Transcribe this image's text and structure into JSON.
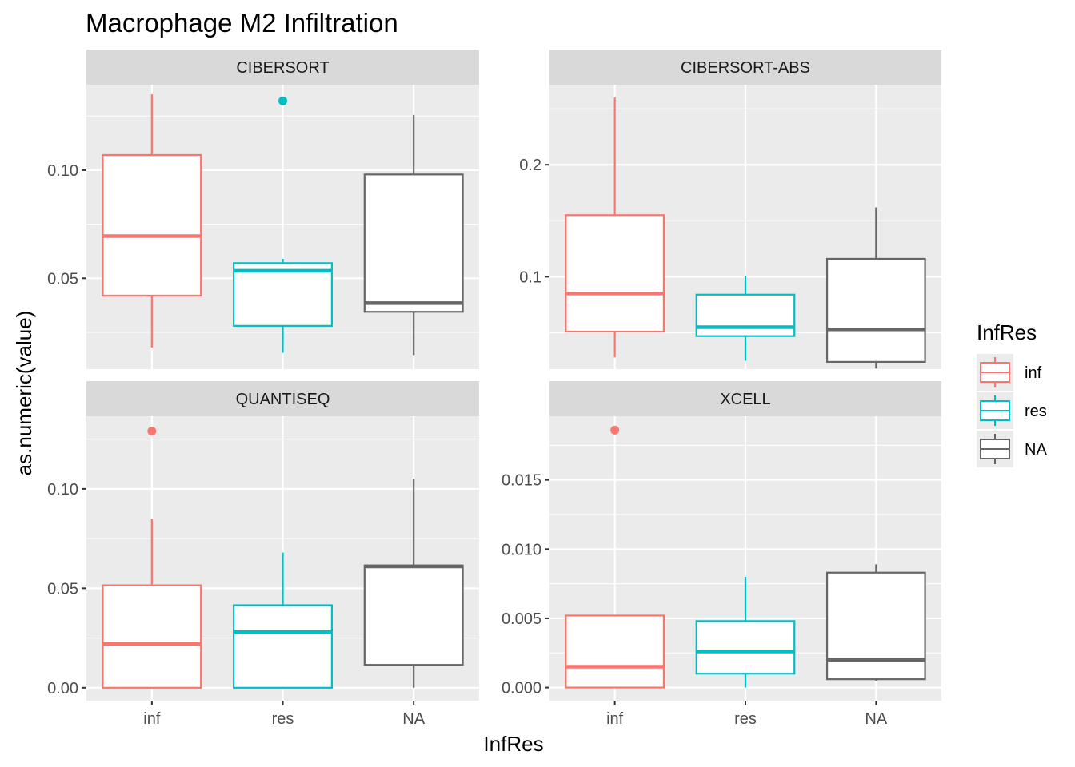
{
  "chart_data": {
    "type": "boxplot",
    "title": "Macrophage M2 Infiltration",
    "xlabel": "InfRes",
    "ylabel": "as.numeric(value)",
    "categories": [
      "inf",
      "res",
      "NA"
    ],
    "colors": {
      "inf": "#F8766D",
      "res": "#00BFC4",
      "NA": "#666666"
    },
    "legend": {
      "title": "InfRes",
      "entries": [
        "inf",
        "res",
        "NA"
      ],
      "position": "right"
    },
    "panel_background": "#EBEBEB",
    "strip_background": "#D9D9D9",
    "grid": true,
    "panels": [
      {
        "name": "CIBERSORT",
        "ylim": [
          0.008,
          0.1395
        ],
        "yticks": [
          0.05,
          0.1
        ],
        "ytick_labels": [
          "0.05",
          "0.10"
        ],
        "boxes": [
          {
            "category": "inf",
            "min": 0.018,
            "q1": 0.042,
            "median": 0.0695,
            "q3": 0.107,
            "max": 0.135,
            "outliers": []
          },
          {
            "category": "res",
            "min": 0.0155,
            "q1": 0.028,
            "median": 0.0535,
            "q3": 0.057,
            "max": 0.059,
            "outliers": [
              0.132
            ]
          },
          {
            "category": "NA",
            "min": 0.0145,
            "q1": 0.0345,
            "median": 0.0385,
            "q3": 0.098,
            "max": 0.1255,
            "outliers": []
          }
        ]
      },
      {
        "name": "CIBERSORT-ABS",
        "ylim": [
          0.0175,
          0.2715
        ],
        "yticks": [
          0.1,
          0.2
        ],
        "ytick_labels": [
          "0.1",
          "0.2"
        ],
        "boxes": [
          {
            "category": "inf",
            "min": 0.028,
            "q1": 0.051,
            "median": 0.085,
            "q3": 0.155,
            "max": 0.26,
            "outliers": []
          },
          {
            "category": "res",
            "min": 0.025,
            "q1": 0.047,
            "median": 0.055,
            "q3": 0.084,
            "max": 0.101,
            "outliers": []
          },
          {
            "category": "NA",
            "min": 0.018,
            "q1": 0.024,
            "median": 0.053,
            "q3": 0.116,
            "max": 0.162,
            "outliers": []
          }
        ]
      },
      {
        "name": "QUANTISEQ",
        "ylim": [
          -0.0065,
          0.1365
        ],
        "yticks": [
          0.0,
          0.05,
          0.1
        ],
        "ytick_labels": [
          "0.00",
          "0.05",
          "0.10"
        ],
        "boxes": [
          {
            "category": "inf",
            "min": 0.0,
            "q1": 0.0,
            "median": 0.022,
            "q3": 0.0515,
            "max": 0.085,
            "outliers": [
              0.129
            ]
          },
          {
            "category": "res",
            "min": 0.0,
            "q1": 0.0,
            "median": 0.028,
            "q3": 0.0415,
            "max": 0.068,
            "outliers": []
          },
          {
            "category": "NA",
            "min": 0.0,
            "q1": 0.0115,
            "median": 0.061,
            "q3": 0.0615,
            "max": 0.105,
            "outliers": []
          }
        ]
      },
      {
        "name": "XCELL",
        "ylim": [
          -0.00095,
          0.0196
        ],
        "yticks": [
          0.0,
          0.005,
          0.01,
          0.015
        ],
        "ytick_labels": [
          "0.000",
          "0.005",
          "0.010",
          "0.015"
        ],
        "boxes": [
          {
            "category": "inf",
            "min": 0.0,
            "q1": 0.0,
            "median": 0.0015,
            "q3": 0.0052,
            "max": 0.0052,
            "outliers": [
              0.0186
            ]
          },
          {
            "category": "res",
            "min": 0.0,
            "q1": 0.001,
            "median": 0.0026,
            "q3": 0.0048,
            "max": 0.008,
            "outliers": []
          },
          {
            "category": "NA",
            "min": 0.0005,
            "q1": 0.0006,
            "median": 0.002,
            "q3": 0.0083,
            "max": 0.0089,
            "outliers": []
          }
        ]
      }
    ]
  }
}
